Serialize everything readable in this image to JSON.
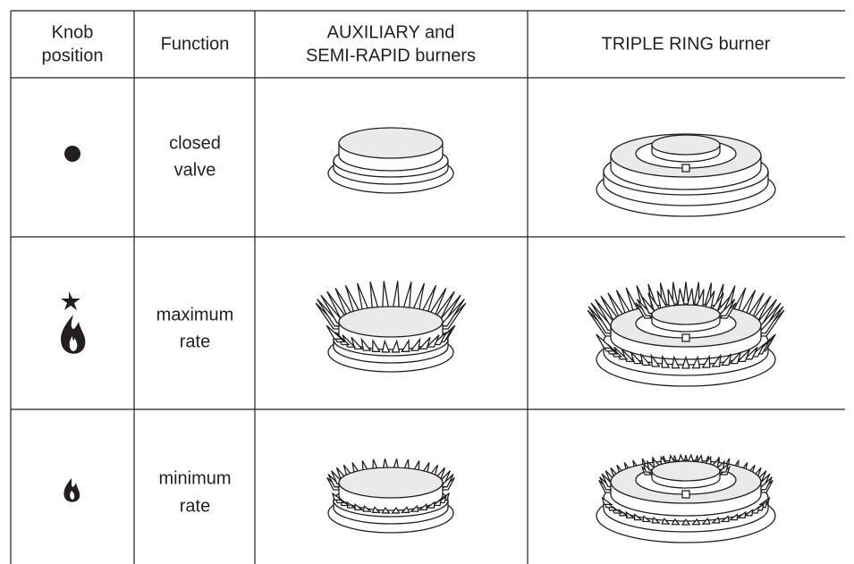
{
  "header": [
    [
      "Knob",
      "position"
    ],
    [
      "Function"
    ],
    [
      "AUXILIARY and",
      "SEMI-RAPID burners"
    ],
    [
      "TRIPLE RING burner"
    ]
  ],
  "rows": [
    [
      "closed",
      "valve"
    ],
    [
      "maximum",
      "rate"
    ],
    [
      "minimum",
      "rate"
    ]
  ]
}
